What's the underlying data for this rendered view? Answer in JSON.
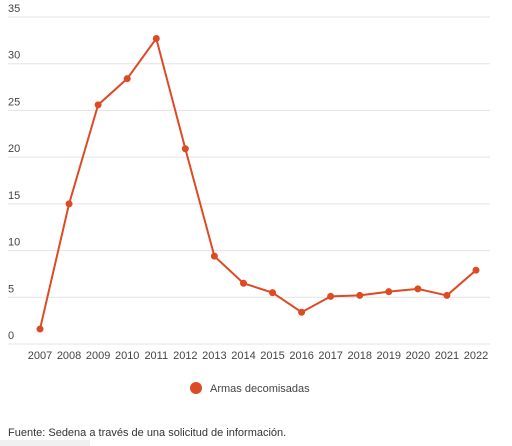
{
  "chart_data": {
    "type": "line",
    "categories": [
      "2007",
      "2008",
      "2009",
      "2010",
      "2011",
      "2012",
      "2013",
      "2014",
      "2015",
      "2016",
      "2017",
      "2018",
      "2019",
      "2020",
      "2021",
      "2022"
    ],
    "series": [
      {
        "name": "Armas decomisadas",
        "color": "#dd4b25",
        "values": [
          1.6,
          15.0,
          25.6,
          28.4,
          32.7,
          20.9,
          9.4,
          6.5,
          5.5,
          3.4,
          5.1,
          5.2,
          5.6,
          5.9,
          5.2,
          7.9
        ]
      }
    ],
    "ylim": [
      0,
      35
    ],
    "yticks": [
      0,
      5,
      10,
      15,
      20,
      25,
      30,
      35
    ],
    "grid": true,
    "source": "Fuente: Sedena a través de una solicitud de información."
  }
}
